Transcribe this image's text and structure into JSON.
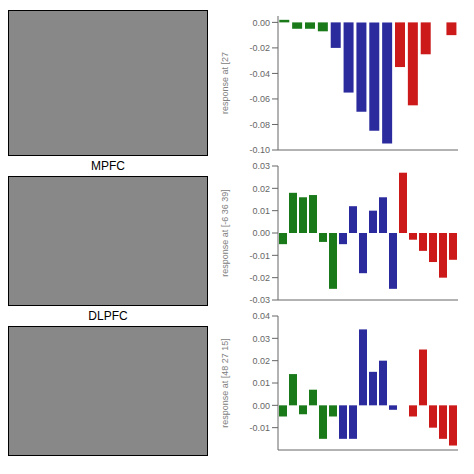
{
  "chart_data": [
    {
      "type": "bar",
      "y_label": "response at [27",
      "categories": [
        null,
        null,
        null,
        null,
        null,
        null,
        null,
        null,
        null,
        null,
        null,
        null,
        null,
        null
      ],
      "values": [
        0.002,
        -0.005,
        -0.005,
        -0.007,
        -0.02,
        -0.055,
        -0.07,
        -0.085,
        -0.095,
        -0.035,
        -0.065,
        -0.025,
        0.0,
        -0.01
      ],
      "colors": [
        "#1a7a1a",
        "#1a7a1a",
        "#1a7a1a",
        "#1a7a1a",
        "#2b2b9e",
        "#2b2b9e",
        "#2b2b9e",
        "#2b2b9e",
        "#2b2b9e",
        "#cc1a1a",
        "#cc1a1a",
        "#cc1a1a",
        "#cc1a1a",
        "#cc1a1a"
      ],
      "ylim": [
        -0.1,
        0.005
      ],
      "yticks": [
        {
          "value": 0,
          "label": "0.00"
        },
        -0.02,
        -0.04,
        -0.06,
        -0.08,
        {
          "value": -0.1,
          "label": "-0.10"
        }
      ],
      "grid": false,
      "tick_labels": "y"
    },
    {
      "type": "bar",
      "y_label": "response at [-6 36 39]",
      "annotations": [
        "MPFC"
      ],
      "categories": [
        null,
        null,
        null,
        null,
        null,
        null,
        null,
        null,
        null,
        null,
        null,
        null,
        null,
        null,
        null,
        null,
        null,
        null
      ],
      "values": [
        -0.005,
        0.018,
        0.016,
        0.017,
        -0.004,
        -0.025,
        -0.005,
        0.012,
        -0.018,
        0.01,
        0.016,
        -0.025,
        0.027,
        -0.003,
        -0.008,
        -0.013,
        -0.02,
        -0.012
      ],
      "colors": [
        "#1a7a1a",
        "#1a7a1a",
        "#1a7a1a",
        "#1a7a1a",
        "#1a7a1a",
        "#1a7a1a",
        "#2b2b9e",
        "#2b2b9e",
        "#2b2b9e",
        "#2b2b9e",
        "#2b2b9e",
        "#2b2b9e",
        "#cc1a1a",
        "#cc1a1a",
        "#cc1a1a",
        "#cc1a1a",
        "#cc1a1a",
        "#cc1a1a"
      ],
      "ylim": [
        -0.03,
        0.03
      ],
      "yticks": [
        0.03,
        0.02,
        0.01,
        {
          "value": 0,
          "label": "0.00"
        },
        -0.01,
        -0.02,
        -0.03
      ],
      "grid": false,
      "tick_labels": "y"
    },
    {
      "type": "bar",
      "y_label": "response at [48 27 15]",
      "annotations": [
        "DLPFC"
      ],
      "categories": [
        null,
        null,
        null,
        null,
        null,
        null,
        null,
        null,
        null,
        null,
        null,
        null,
        null,
        null,
        null,
        null,
        null,
        null
      ],
      "values": [
        -0.005,
        0.014,
        -0.004,
        0.007,
        -0.015,
        -0.005,
        -0.015,
        -0.015,
        0.034,
        0.015,
        0.02,
        -0.002,
        0.0,
        -0.005,
        0.025,
        -0.01,
        -0.015,
        -0.018
      ],
      "colors": [
        "#1a7a1a",
        "#1a7a1a",
        "#1a7a1a",
        "#1a7a1a",
        "#1a7a1a",
        "#1a7a1a",
        "#2b2b9e",
        "#2b2b9e",
        "#2b2b9e",
        "#2b2b9e",
        "#2b2b9e",
        "#2b2b9e",
        "#cc1a1a",
        "#cc1a1a",
        "#cc1a1a",
        "#cc1a1a",
        "#cc1a1a",
        "#cc1a1a"
      ],
      "ylim": [
        -0.02,
        0.04
      ],
      "yticks": [
        0.04,
        0.03,
        0.02,
        0.01,
        {
          "value": 0,
          "label": "0.00"
        },
        -0.01
      ],
      "grid": false,
      "tick_labels": "y"
    }
  ]
}
